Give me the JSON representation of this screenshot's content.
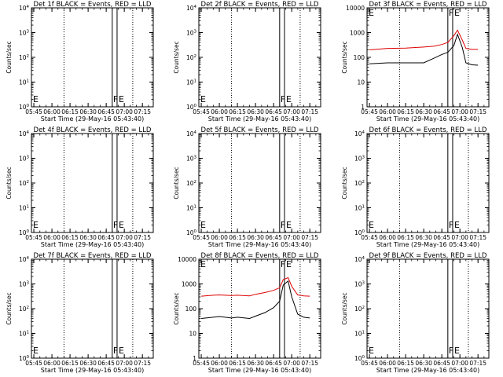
{
  "figure": {
    "xtick_labels": [
      "05:45",
      "06:00",
      "06:15",
      "06:30",
      "06:45",
      "07:00",
      "07:15"
    ],
    "xlabel": "Start Time (29-May-16 05:43:40)",
    "ylabel": "Counts/sec",
    "flag_labels": [
      "E",
      "F",
      "E"
    ]
  },
  "chart_data": [
    {
      "type": "line",
      "title": "Det 1f BLACK = Events, RED = LLD",
      "ylim": [
        1,
        10000
      ],
      "log_y": true,
      "ytick_labels": [
        "10^0",
        "10^1",
        "10^2",
        "10^3",
        "10^4"
      ],
      "series": []
    },
    {
      "type": "line",
      "title": "Det 2f BLACK = Events, RED = LLD",
      "ylim": [
        1,
        10000
      ],
      "log_y": true,
      "ytick_labels": [
        "10^0",
        "10^1",
        "10^2",
        "10^3",
        "10^4"
      ],
      "series": []
    },
    {
      "type": "line",
      "title": "Det 3f BLACK = Events, RED = LLD",
      "ylim": [
        1,
        10000
      ],
      "log_y": true,
      "ytick_labels": [
        "1",
        "10",
        "100",
        "1000",
        "10000"
      ],
      "series": [
        {
          "color": "#000000",
          "x": [
            "05:45",
            "06:00",
            "06:15",
            "06:30",
            "06:38",
            "06:45",
            "06:50",
            "06:55",
            "06:58",
            "07:02",
            "07:05",
            "07:10",
            "07:15"
          ],
          "y": [
            55,
            60,
            60,
            60,
            90,
            130,
            160,
            300,
            850,
            250,
            60,
            50,
            48
          ]
        },
        {
          "color": "#dd0000",
          "x": [
            "05:45",
            "06:00",
            "06:15",
            "06:30",
            "06:38",
            "06:45",
            "06:50",
            "06:55",
            "06:58",
            "07:02",
            "07:05",
            "07:10",
            "07:15"
          ],
          "y": [
            200,
            230,
            235,
            260,
            280,
            330,
            400,
            750,
            1250,
            500,
            230,
            210,
            210
          ]
        }
      ]
    },
    {
      "type": "line",
      "title": "Det 4f BLACK = Events, RED = LLD",
      "ylim": [
        1,
        10000
      ],
      "log_y": true,
      "ytick_labels": [
        "10^0",
        "10^1",
        "10^2",
        "10^3",
        "10^4"
      ],
      "series": []
    },
    {
      "type": "line",
      "title": "Det 5f BLACK = Events, RED = LLD",
      "ylim": [
        1,
        10000
      ],
      "log_y": true,
      "ytick_labels": [
        "10^0",
        "10^1",
        "10^2",
        "10^3",
        "10^4"
      ],
      "series": []
    },
    {
      "type": "line",
      "title": "Det 6f BLACK = Events, RED = LLD",
      "ylim": [
        1,
        10000
      ],
      "log_y": true,
      "ytick_labels": [
        "10^0",
        "10^1",
        "10^2",
        "10^3",
        "10^4"
      ],
      "series": []
    },
    {
      "type": "line",
      "title": "Det 7f BLACK = Events, RED = LLD",
      "ylim": [
        1,
        10000
      ],
      "log_y": true,
      "ytick_labels": [
        "10^0",
        "10^1",
        "10^2",
        "10^3",
        "10^4"
      ],
      "series": []
    },
    {
      "type": "line",
      "title": "Det 8f BLACK = Events, RED = LLD",
      "ylim": [
        1,
        10000
      ],
      "log_y": true,
      "ytick_labels": [
        "1",
        "10",
        "100",
        "1000",
        "10000"
      ],
      "series": [
        {
          "color": "#000000",
          "x": [
            "05:45",
            "05:55",
            "06:00",
            "06:10",
            "06:15",
            "06:25",
            "06:30",
            "06:38",
            "06:45",
            "06:50",
            "06:53",
            "06:57",
            "07:00",
            "07:05",
            "07:10",
            "07:15"
          ],
          "y": [
            40,
            45,
            48,
            42,
            45,
            40,
            50,
            70,
            110,
            200,
            900,
            1300,
            300,
            60,
            45,
            42
          ]
        },
        {
          "color": "#dd0000",
          "x": [
            "05:45",
            "05:55",
            "06:00",
            "06:10",
            "06:15",
            "06:25",
            "06:30",
            "06:38",
            "06:45",
            "06:50",
            "06:53",
            "06:57",
            "07:00",
            "07:05",
            "07:10",
            "07:15"
          ],
          "y": [
            320,
            350,
            360,
            340,
            350,
            330,
            380,
            450,
            550,
            700,
            1500,
            1800,
            800,
            360,
            330,
            320
          ]
        }
      ]
    },
    {
      "type": "line",
      "title": "Det 9f BLACK = Events, RED = LLD",
      "ylim": [
        1,
        10000
      ],
      "log_y": true,
      "ytick_labels": [
        "10^0",
        "10^1",
        "10^2",
        "10^3",
        "10^4"
      ],
      "series": []
    }
  ]
}
